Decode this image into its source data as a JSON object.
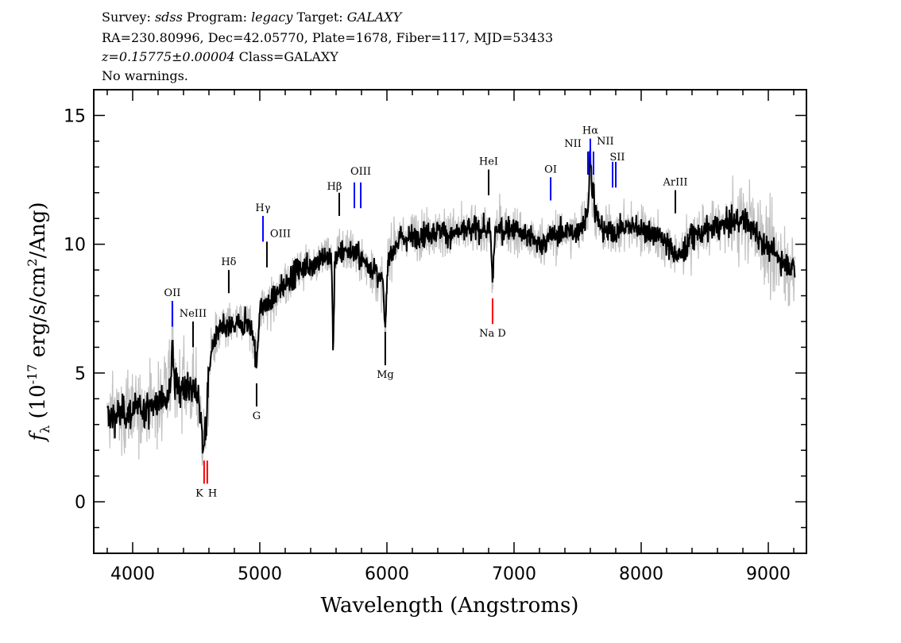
{
  "header": {
    "line1": {
      "survey_label": "Survey:",
      "survey": "sdss",
      "program_label": "Program:",
      "program": "legacy",
      "target_label": "Target:",
      "target": "GALAXY"
    },
    "line2": "RA=230.80996, Dec=42.05770, Plate=1678, Fiber=117, MJD=53433",
    "line3": {
      "redshift": "z=0.15775±0.00004",
      "class": "Class=GALAXY"
    },
    "line4": "No warnings."
  },
  "chart_data": {
    "type": "line",
    "xlabel": "Wavelength (Angstroms)",
    "ylabel": "f_λ (10^-17 erg/s/cm^2/Ang)",
    "ylabel_parts": {
      "f": "f",
      "sub": "λ",
      "pre": " (10",
      "sup1": "-17",
      "mid": " erg/s/cm",
      "sup2": "2",
      "post": "/Ang)"
    },
    "xlim": [
      3694,
      9300
    ],
    "ylim": [
      -2,
      16
    ],
    "xticks": [
      4000,
      5000,
      6000,
      7000,
      8000,
      9000
    ],
    "yticks": [
      0,
      5,
      10,
      15
    ],
    "grid": false,
    "series": [
      {
        "role": "flux",
        "color": "#000000",
        "x": [
          3800,
          4000,
          4200,
          4300,
          4400,
          4500,
          4550,
          4600,
          4700,
          4800,
          4900,
          4950,
          5000,
          5100,
          5200,
          5300,
          5400,
          5500,
          5600,
          5700,
          5800,
          5900,
          5950,
          6000,
          6100,
          6200,
          6300,
          6400,
          6500,
          6600,
          6700,
          6800,
          6900,
          7000,
          7100,
          7200,
          7300,
          7400,
          7500,
          7600,
          7700,
          7800,
          7900,
          8000,
          8100,
          8200,
          8300,
          8400,
          8500,
          8600,
          8700,
          8800,
          8900,
          9000,
          9100,
          9200
        ],
        "y": [
          3.3,
          3.5,
          3.8,
          4.5,
          4.5,
          4.3,
          4.0,
          6.0,
          6.7,
          6.8,
          7.0,
          6.5,
          7.5,
          7.8,
          8.5,
          9.0,
          9.2,
          9.5,
          9.6,
          9.8,
          9.4,
          9.0,
          8.5,
          9.5,
          10.2,
          10.3,
          10.4,
          10.5,
          10.4,
          10.5,
          10.6,
          10.5,
          10.6,
          10.6,
          10.3,
          10.0,
          10.3,
          10.5,
          10.4,
          11.5,
          10.5,
          10.5,
          10.7,
          10.6,
          10.4,
          10.0,
          9.5,
          10.3,
          10.5,
          10.7,
          10.8,
          11.0,
          10.5,
          9.8,
          9.4,
          9.0
        ]
      },
      {
        "role": "error-band",
        "color": "#c0c0c0"
      }
    ],
    "lines": [
      {
        "label": "OII",
        "wavelengths": [
          4312
        ],
        "kind": "emission",
        "color": "#0000ff",
        "range": [
          6.8,
          7.8
        ]
      },
      {
        "label": "NeIII",
        "wavelengths": [
          4475
        ],
        "kind": "emission",
        "color": "#000000",
        "range": [
          6.0,
          7.0
        ]
      },
      {
        "label": "Hδ",
        "wavelengths": [
          4756
        ],
        "kind": "emission",
        "color": "#000000",
        "range": [
          8.1,
          9.0
        ]
      },
      {
        "label": "Hγ",
        "wavelengths": [
          5025
        ],
        "kind": "emission",
        "color": "#0000ff",
        "range": [
          10.1,
          11.1
        ]
      },
      {
        "label": "OIII",
        "wavelengths": [
          5056
        ],
        "kind": "emission",
        "color": "#000000",
        "range": [
          9.1,
          10.1
        ],
        "label_side": "right"
      },
      {
        "label": "Hβ",
        "wavelengths": [
          5625
        ],
        "kind": "emission",
        "color": "#000000",
        "range": [
          11.1,
          12.0
        ]
      },
      {
        "label": "OIII",
        "wavelengths": [
          5744,
          5794
        ],
        "kind": "emission",
        "color": "#0000ff",
        "range": [
          11.4,
          12.4
        ]
      },
      {
        "label": "HeI",
        "wavelengths": [
          6800
        ],
        "kind": "emission",
        "color": "#000000",
        "range": [
          11.9,
          12.9
        ]
      },
      {
        "label": "OI",
        "wavelengths": [
          7288
        ],
        "kind": "emission",
        "color": "#0000ff",
        "range": [
          11.7,
          12.6
        ]
      },
      {
        "label": "NII",
        "wavelengths": [
          7581
        ],
        "kind": "emission",
        "color": "#0000ff",
        "range": [
          12.7,
          13.6
        ],
        "label_side": "left"
      },
      {
        "label": "Hα",
        "wavelengths": [
          7600
        ],
        "kind": "emission",
        "color": "#0000ff",
        "range": [
          13.1,
          14.1
        ]
      },
      {
        "label": "NII",
        "wavelengths": [
          7625
        ],
        "kind": "emission",
        "color": "#0000ff",
        "range": [
          12.7,
          13.6
        ],
        "label_side": "right"
      },
      {
        "label": "SII",
        "wavelengths": [
          7775,
          7800
        ],
        "kind": "emission",
        "color": "#0000ff",
        "range": [
          12.2,
          13.2
        ]
      },
      {
        "label": "ArIII",
        "wavelengths": [
          8269
        ],
        "kind": "emission",
        "color": "#000000",
        "range": [
          11.2,
          12.1
        ]
      },
      {
        "label": "K",
        "wavelengths": [
          4562
        ],
        "kind": "absorption",
        "color": "#ff0000",
        "range": [
          0.7,
          1.6
        ]
      },
      {
        "label": "H",
        "wavelengths": [
          4587
        ],
        "kind": "absorption",
        "color": "#ff0000",
        "range": [
          0.7,
          1.6
        ]
      },
      {
        "label": "G",
        "wavelengths": [
          4975
        ],
        "kind": "absorption",
        "color": "#000000",
        "range": [
          3.7,
          4.6
        ]
      },
      {
        "label": "Mg",
        "wavelengths": [
          5987
        ],
        "kind": "absorption",
        "color": "#000000",
        "range": [
          5.3,
          6.6
        ]
      },
      {
        "label": "Na D",
        "wavelengths": [
          6831
        ],
        "kind": "absorption",
        "color": "#ff0000",
        "range": [
          6.9,
          7.9
        ]
      }
    ]
  }
}
